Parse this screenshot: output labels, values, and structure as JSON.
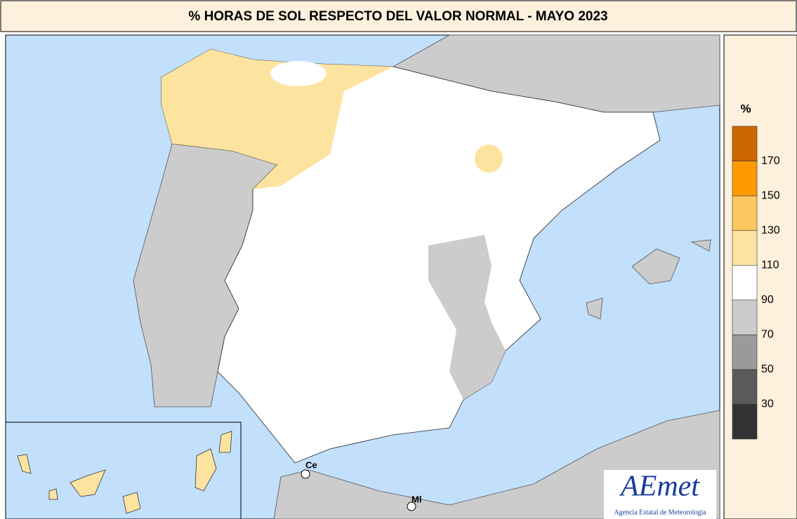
{
  "title": "% HORAS DE SOL RESPECTO DEL VALOR NORMAL - MAYO 2023",
  "legend": {
    "title": "%",
    "ticks": [
      30,
      50,
      70,
      90,
      110,
      130,
      150,
      170
    ],
    "colors": [
      "#333333",
      "#5a5a5a",
      "#9a9a9a",
      "#cccccc",
      "#ffffff",
      "#fde3a0",
      "#fdc860",
      "#fd9a00",
      "#cc6600"
    ]
  },
  "cities": [
    "Ce",
    "Ml"
  ],
  "logo": {
    "name": "AEmet",
    "subtitle": "Agencia Estatal de Meteorología"
  }
}
